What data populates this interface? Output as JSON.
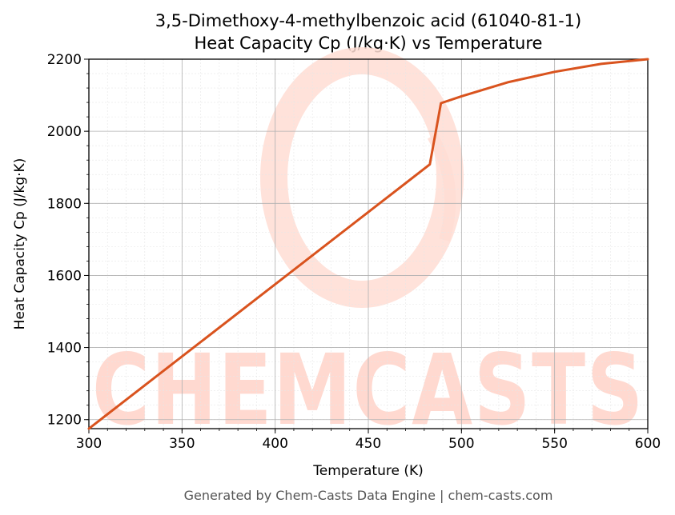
{
  "chart_data": {
    "type": "line",
    "title": "3,5-Dimethoxy-4-methylbenzoic acid (61040-81-1)",
    "subtitle": "Heat Capacity Cp (J/kg·K) vs Temperature",
    "xlabel": "Temperature (K)",
    "ylabel": "Heat Capacity Cp (J/kg·K)",
    "xlim": [
      300,
      600
    ],
    "ylim": [
      1175,
      2200
    ],
    "x_ticks": [
      300,
      350,
      400,
      450,
      500,
      550,
      600
    ],
    "y_ticks": [
      1200,
      1400,
      1600,
      1800,
      2000,
      2200
    ],
    "grid": true,
    "line_color": "#d9531e",
    "series": [
      {
        "x": [
          300,
          483,
          489,
          500,
          525,
          550,
          575,
          600
        ],
        "y": [
          1175,
          1908,
          2078,
          2097,
          2136,
          2165,
          2187,
          2200
        ]
      }
    ]
  },
  "watermark": {
    "text": "CHEMCASTS",
    "color": "#ffd9d0"
  },
  "footer": "Generated by Chem-Casts Data Engine | chem-casts.com"
}
